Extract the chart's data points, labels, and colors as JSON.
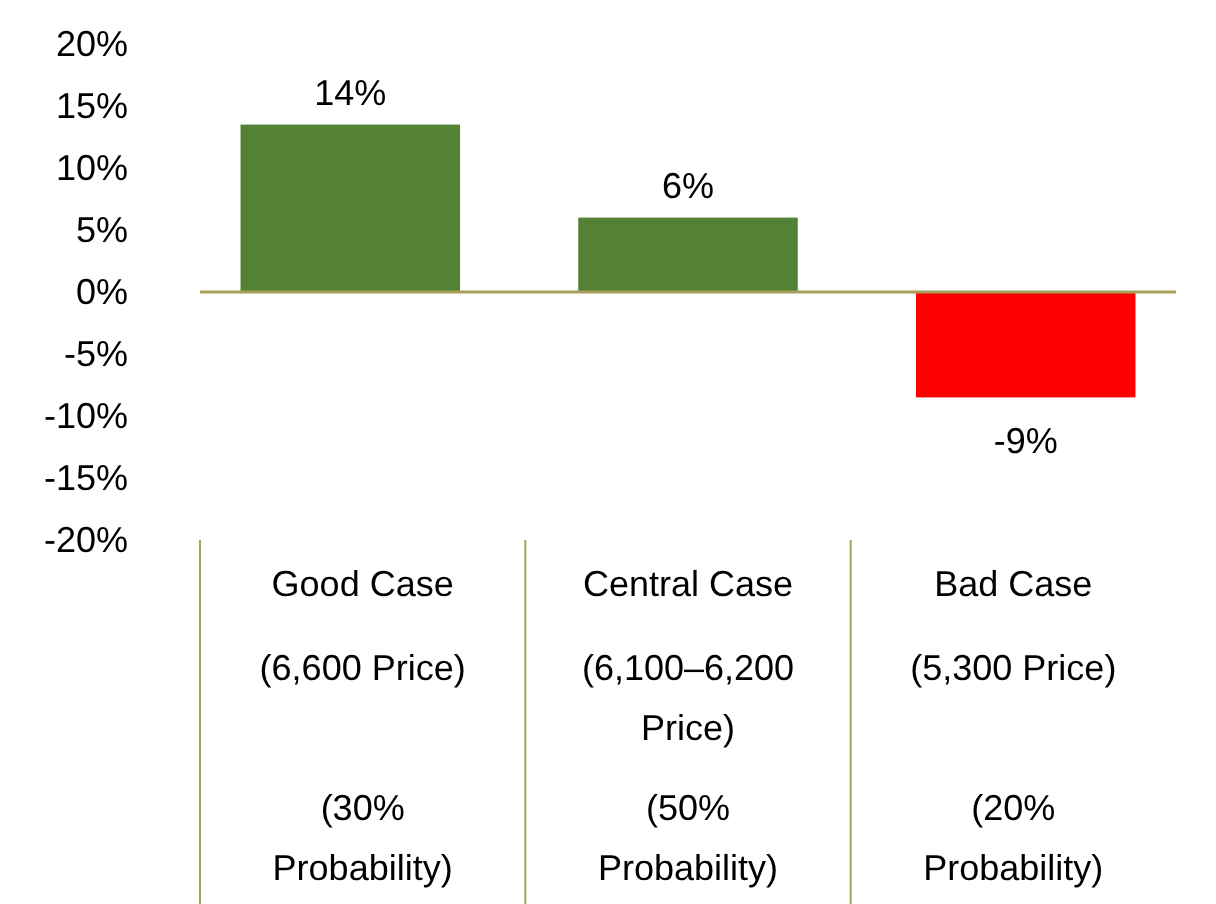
{
  "chart_data": {
    "type": "bar",
    "categories": [
      "Good Case\n(6,600 Price)\n(30% Probability)",
      "Central Case\n(6,100–6,200 Price)\n(50% Probability)",
      "Bad Case\n(5,300 Price)\n(20% Probability)"
    ],
    "values": [
      13.5,
      6,
      -8.5
    ],
    "colors": [
      "#548235",
      "#548235",
      "#ff0000"
    ],
    "value_labels": [
      "14%",
      "6%",
      "-9%"
    ],
    "ylim": [
      -20,
      20
    ],
    "yticks": [
      {
        "value": -20,
        "label": "-20%"
      },
      {
        "value": -15,
        "label": "-15%"
      },
      {
        "value": -10,
        "label": "-10%"
      },
      {
        "value": -5,
        "label": "-5%"
      },
      {
        "value": 0,
        "label": "0%"
      },
      {
        "value": 5,
        "label": "5%"
      },
      {
        "value": 10,
        "label": "10%"
      },
      {
        "value": 15,
        "label": "15%"
      },
      {
        "value": 20,
        "label": "20%"
      }
    ],
    "grid": false,
    "ref_lines": [
      {
        "axis": "y",
        "value": 0,
        "color": "#a6a05a"
      }
    ]
  }
}
